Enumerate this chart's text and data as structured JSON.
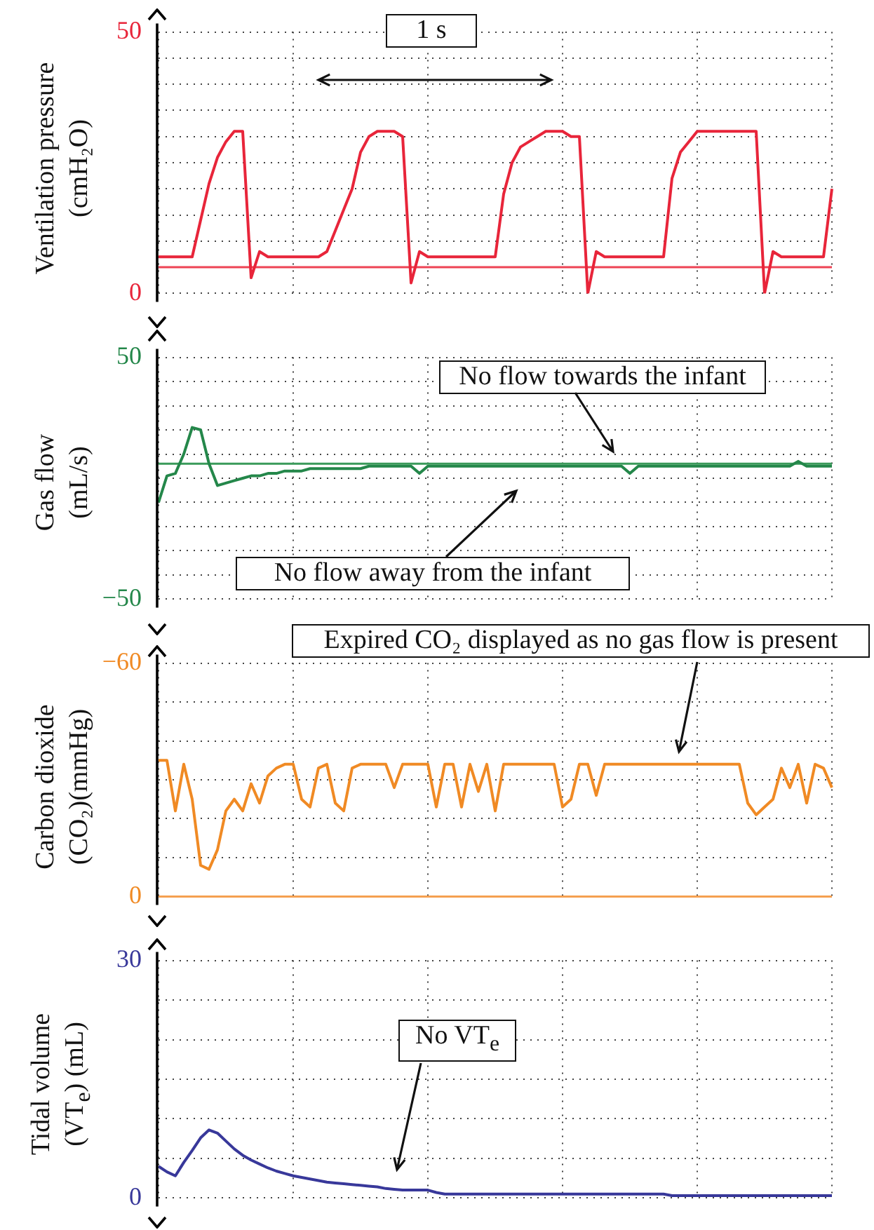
{
  "chart_data": [
    {
      "type": "line",
      "ylabel": "Ventilation pressure (cmH₂O)",
      "marker": "none",
      "grid": true,
      "tick_labels": "y",
      "legend": false,
      "categories": [
        null,
        null,
        null,
        null,
        null,
        null,
        null,
        null,
        null,
        null,
        null,
        null,
        null,
        null,
        null,
        null,
        null,
        null,
        null,
        null,
        null,
        null,
        null,
        null,
        null,
        null,
        null,
        null,
        null,
        null,
        null,
        null,
        null,
        null,
        null,
        null,
        null,
        null,
        null,
        null,
        null,
        null,
        null,
        null,
        null,
        null,
        null,
        null,
        null,
        null,
        null,
        null,
        null,
        null,
        null,
        null,
        null,
        null,
        null,
        null,
        null,
        null,
        null,
        null,
        null,
        null,
        null,
        null,
        null,
        null,
        null,
        null,
        null,
        null,
        null,
        null,
        null,
        null,
        null,
        null,
        null
      ],
      "series": [
        {
          "color": "#e8253a",
          "values": [
            7,
            7,
            7,
            7,
            7,
            14,
            21,
            26,
            29,
            31,
            31,
            3,
            8,
            7,
            7,
            7,
            7,
            7,
            7,
            7,
            8,
            12,
            16,
            20,
            27,
            30,
            31,
            31,
            31,
            30,
            2,
            8,
            7,
            7,
            7,
            7,
            7,
            7,
            7,
            7,
            7,
            19,
            25,
            28,
            29,
            30,
            31,
            31,
            31,
            30,
            30,
            0,
            8,
            7,
            7,
            7,
            7,
            7,
            7,
            7,
            7,
            22,
            27,
            29,
            31,
            31,
            31,
            31,
            31,
            31,
            31,
            31,
            0,
            8,
            7,
            7,
            7,
            7,
            7,
            7,
            20
          ]
        }
      ],
      "ylim": [
        0,
        50
      ],
      "yticks": [
        0,
        {
          "value": 5,
          "label": null
        },
        {
          "value": 10,
          "label": null
        },
        {
          "value": 15,
          "label": null
        },
        {
          "value": 20,
          "label": null
        },
        {
          "value": 25,
          "label": null
        },
        {
          "value": 30,
          "label": null
        },
        {
          "value": 35,
          "label": null
        },
        {
          "value": 40,
          "label": null
        },
        {
          "value": 45,
          "label": null
        },
        50
      ],
      "ref_lines": [
        {
          "axis": "y",
          "value": 5,
          "color": "#ee4455"
        }
      ],
      "annotations": [
        "1 s"
      ]
    },
    {
      "type": "line",
      "ylabel": "Gas flow (mL/s)",
      "marker": "none",
      "grid": true,
      "tick_labels": "y",
      "legend": false,
      "categories": [
        null,
        null,
        null,
        null,
        null,
        null,
        null,
        null,
        null,
        null,
        null,
        null,
        null,
        null,
        null,
        null,
        null,
        null,
        null,
        null,
        null,
        null,
        null,
        null,
        null,
        null,
        null,
        null,
        null,
        null,
        null,
        null,
        null,
        null,
        null,
        null,
        null,
        null,
        null,
        null,
        null,
        null,
        null,
        null,
        null,
        null,
        null,
        null,
        null,
        null,
        null,
        null,
        null,
        null,
        null,
        null,
        null,
        null,
        null,
        null,
        null,
        null,
        null,
        null,
        null,
        null,
        null,
        null,
        null,
        null,
        null,
        null,
        null,
        null,
        null,
        null,
        null,
        null,
        null,
        null,
        null
      ],
      "series": [
        {
          "color": "#24874a",
          "values": [
            -10,
            1,
            2,
            10,
            21,
            20,
            6,
            -3,
            -2,
            -1,
            0,
            1,
            1,
            2,
            2,
            3,
            3,
            3,
            4,
            4,
            4,
            4,
            4,
            4,
            4,
            5,
            5,
            5,
            5,
            5,
            5,
            2,
            5,
            5,
            5,
            5,
            5,
            5,
            5,
            5,
            5,
            5,
            5,
            5,
            5,
            5,
            5,
            5,
            5,
            5,
            5,
            5,
            5,
            5,
            5,
            5,
            2,
            5,
            5,
            5,
            5,
            5,
            5,
            5,
            5,
            5,
            5,
            5,
            5,
            5,
            5,
            5,
            5,
            5,
            5,
            5,
            7,
            5,
            5,
            5,
            5
          ]
        }
      ],
      "ylim": [
        -50,
        50
      ],
      "yticks": [
        {
          "value": -50,
          "label": "−50"
        },
        {
          "value": -40,
          "label": null
        },
        {
          "value": -30,
          "label": null
        },
        {
          "value": -20,
          "label": null
        },
        {
          "value": -10,
          "label": null
        },
        {
          "value": 0,
          "label": null
        },
        {
          "value": 10,
          "label": null
        },
        {
          "value": 20,
          "label": null
        },
        {
          "value": 30,
          "label": null
        },
        {
          "value": 40,
          "label": null
        },
        50
      ],
      "ref_lines": [
        {
          "axis": "y",
          "value": 6,
          "color": "#3a9a5a"
        }
      ],
      "annotations": [
        "No flow towards the infant",
        "No flow away from the infant"
      ]
    },
    {
      "type": "line",
      "ylabel": "Carbon dioxide (CO₂)(mmHg)",
      "marker": "none",
      "grid": true,
      "tick_labels": "y",
      "legend": false,
      "categories": [
        null,
        null,
        null,
        null,
        null,
        null,
        null,
        null,
        null,
        null,
        null,
        null,
        null,
        null,
        null,
        null,
        null,
        null,
        null,
        null,
        null,
        null,
        null,
        null,
        null,
        null,
        null,
        null,
        null,
        null,
        null,
        null,
        null,
        null,
        null,
        null,
        null,
        null,
        null,
        null,
        null,
        null,
        null,
        null,
        null,
        null,
        null,
        null,
        null,
        null,
        null,
        null,
        null,
        null,
        null,
        null,
        null,
        null,
        null,
        null,
        null,
        null,
        null,
        null,
        null,
        null,
        null,
        null,
        null,
        null,
        null,
        null,
        null,
        null,
        null,
        null,
        null,
        null,
        null,
        null,
        null
      ],
      "series": [
        {
          "color": "#f08a24",
          "values": [
            -35,
            -35,
            -22,
            -34,
            -25,
            -8,
            -7,
            -12,
            -22,
            -25,
            -22,
            -29,
            -24,
            -31,
            -33,
            -34,
            -34,
            -25,
            -23,
            -33,
            -34,
            -24,
            -22,
            -33,
            -34,
            -34,
            -34,
            -34,
            -28,
            -34,
            -34,
            -34,
            -34,
            -23,
            -34,
            -34,
            -23,
            -34,
            -27,
            -34,
            -22,
            -34,
            -34,
            -34,
            -34,
            -34,
            -34,
            -34,
            -23,
            -25,
            -34,
            -34,
            -26,
            -34,
            -34,
            -34,
            -34,
            -34,
            -34,
            -34,
            -34,
            -34,
            -34,
            -34,
            -34,
            -34,
            -34,
            -34,
            -34,
            -34,
            -24,
            -21,
            -23,
            -25,
            -33,
            -28,
            -34,
            -24,
            -34,
            -33,
            -28
          ]
        }
      ],
      "ylim": [
        0,
        -60
      ],
      "yticks": [
        0,
        {
          "value": -10,
          "label": null
        },
        {
          "value": -20,
          "label": null
        },
        {
          "value": -30,
          "label": null
        },
        {
          "value": -40,
          "label": null
        },
        {
          "value": -50,
          "label": null
        },
        {
          "value": -60,
          "label": "−60"
        }
      ],
      "ref_lines": [
        {
          "axis": "y",
          "value": 0,
          "color": "#f5a050"
        }
      ],
      "annotations": [
        "Expired CO₂ displayed as no gas flow is present"
      ]
    },
    {
      "type": "line",
      "ylabel": "Tidal volume (VT$_{e}$) (mL)",
      "marker": "none",
      "grid": true,
      "tick_labels": "y",
      "legend": false,
      "categories": [
        null,
        null,
        null,
        null,
        null,
        null,
        null,
        null,
        null,
        null,
        null,
        null,
        null,
        null,
        null,
        null,
        null,
        null,
        null,
        null,
        null,
        null,
        null,
        null,
        null,
        null,
        null,
        null,
        null,
        null,
        null,
        null,
        null,
        null,
        null,
        null,
        null,
        null,
        null,
        null,
        null,
        null,
        null,
        null,
        null,
        null,
        null,
        null,
        null,
        null,
        null,
        null,
        null,
        null,
        null,
        null,
        null,
        null,
        null,
        null,
        null,
        null,
        null,
        null,
        null,
        null,
        null,
        null,
        null,
        null,
        null,
        null,
        null,
        null,
        null,
        null,
        null,
        null,
        null,
        null,
        null
      ],
      "series": [
        {
          "color": "#38389a",
          "values": [
            4,
            3.3,
            2.8,
            4.5,
            6,
            7.6,
            8.6,
            8.2,
            7.2,
            6.2,
            5.4,
            4.8,
            4.3,
            3.8,
            3.4,
            3.1,
            2.8,
            2.6,
            2.4,
            2.2,
            2,
            1.9,
            1.8,
            1.7,
            1.6,
            1.5,
            1.4,
            1.2,
            1.1,
            1,
            1,
            1,
            1,
            0.7,
            0.5,
            0.5,
            0.5,
            0.5,
            0.5,
            0.5,
            0.5,
            0.5,
            0.5,
            0.5,
            0.5,
            0.5,
            0.5,
            0.5,
            0.5,
            0.5,
            0.5,
            0.5,
            0.5,
            0.5,
            0.5,
            0.5,
            0.5,
            0.5,
            0.5,
            0.5,
            0.5,
            0.3,
            0.3,
            0.3,
            0.3,
            0.3,
            0.3,
            0.3,
            0.3,
            0.3,
            0.3,
            0.3,
            0.3,
            0.3,
            0.3,
            0.3,
            0.3,
            0.3,
            0.3,
            0.3,
            0.3
          ]
        }
      ],
      "ylim": [
        0,
        30
      ],
      "yticks": [
        0,
        {
          "value": 5,
          "label": null
        },
        {
          "value": 10,
          "label": null
        },
        {
          "value": 15,
          "label": null
        },
        {
          "value": 20,
          "label": null
        },
        {
          "value": 25,
          "label": null
        },
        30
      ],
      "annotations": [
        "No VT$_{e}$"
      ]
    }
  ]
}
